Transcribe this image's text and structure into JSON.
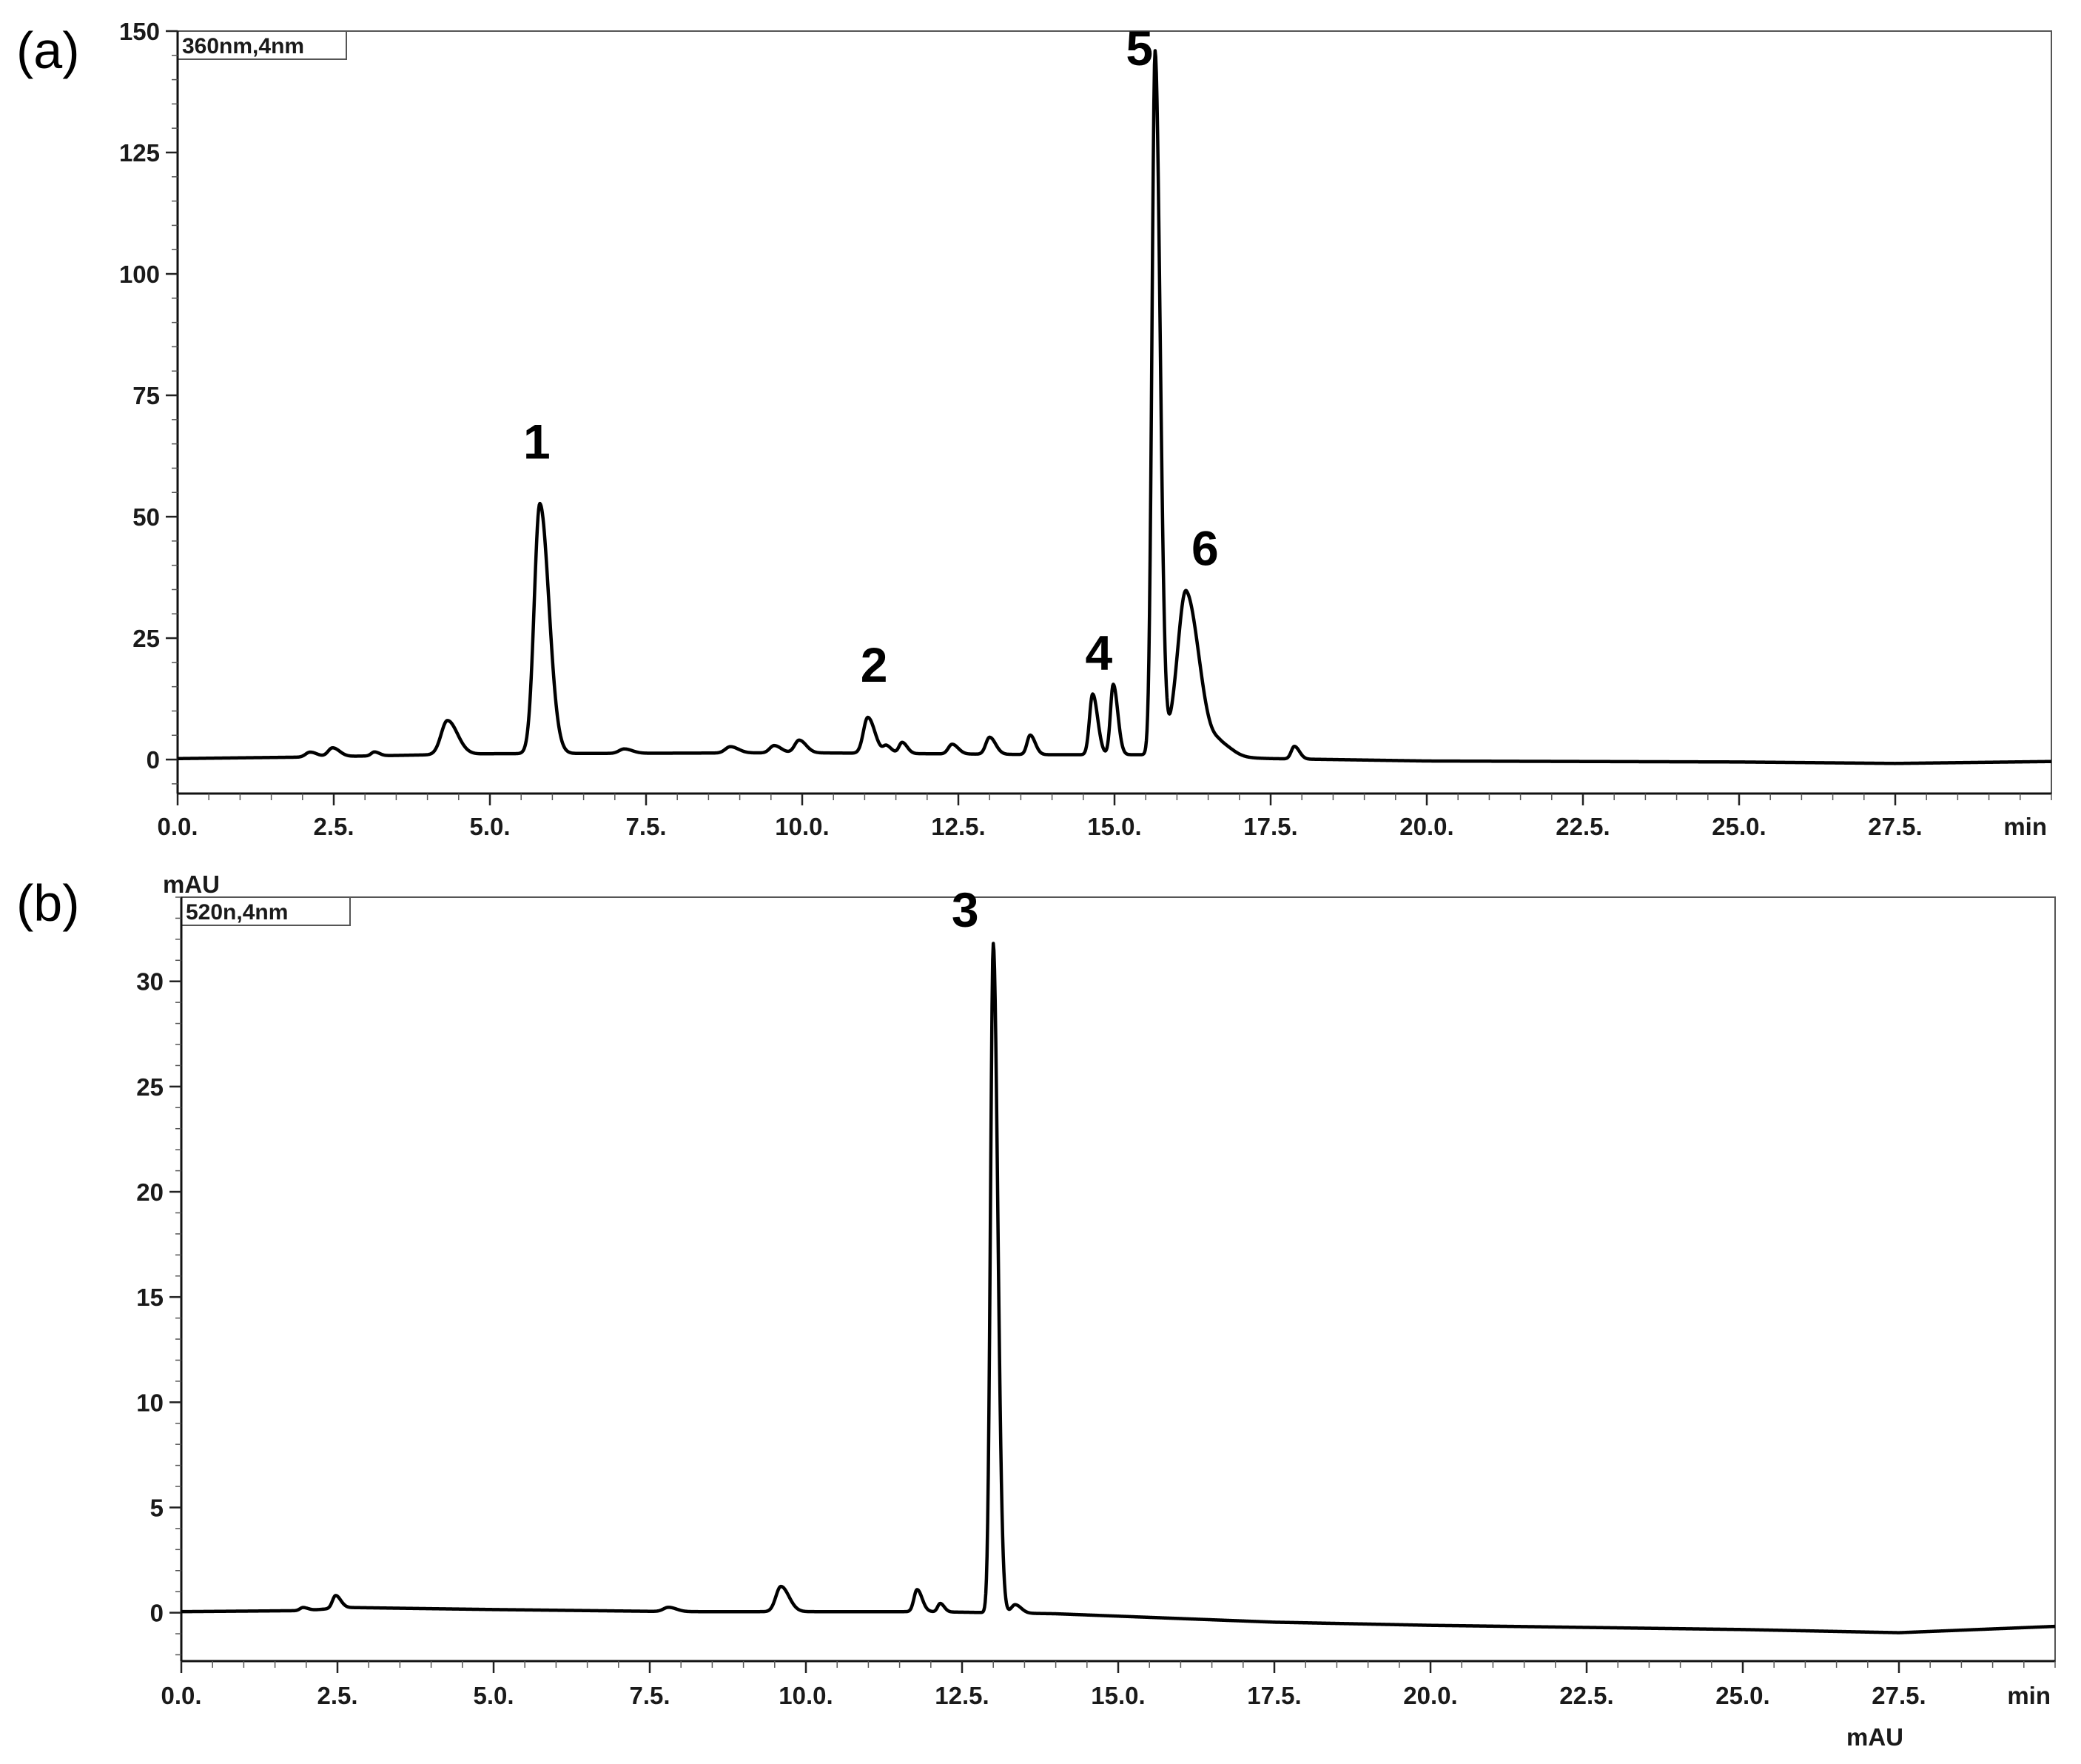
{
  "chart_data": [
    {
      "type": "line",
      "panel_label": "(a)",
      "channel_label": "360nm,4nm",
      "x_unit_label": "min",
      "y_unit_label": "",
      "xlim": [
        0,
        30
      ],
      "ylim": [
        -7,
        150
      ],
      "x_tick_labels": [
        "0.0.",
        "2.5.",
        "5.0.",
        "7.5.",
        "10.0.",
        "12.5.",
        "15.0.",
        "17.5.",
        "20.0.",
        "22.5.",
        "25.0.",
        "27.5."
      ],
      "x_tick_values": [
        0,
        2.5,
        5,
        7.5,
        10,
        12.5,
        15,
        17.5,
        20,
        22.5,
        25,
        27.5
      ],
      "y_tick_labels": [
        "150",
        "125",
        "100",
        "75",
        "50",
        "25",
        "0"
      ],
      "y_tick_values": [
        150,
        125,
        100,
        75,
        50,
        25,
        0
      ],
      "grid": false,
      "baseline": [
        [
          0,
          0.2
        ],
        [
          2,
          0.5
        ],
        [
          5,
          1.2
        ],
        [
          10,
          1.4
        ],
        [
          14,
          1.0
        ],
        [
          15.5,
          1.0
        ],
        [
          17.5,
          0.2
        ],
        [
          20,
          -0.3
        ],
        [
          25,
          -0.5
        ],
        [
          27.5,
          -0.8
        ],
        [
          30,
          -0.4
        ]
      ],
      "peaks": [
        {
          "rt": 2.12,
          "height": 1.0,
          "width": 0.07
        },
        {
          "rt": 2.48,
          "height": 1.8,
          "width": 0.07
        },
        {
          "rt": 3.15,
          "height": 0.8,
          "width": 0.05
        },
        {
          "rt": 4.32,
          "height": 7.0,
          "width": 0.1
        },
        {
          "rt": 5.8,
          "height": 51.5,
          "width": 0.09
        },
        {
          "rt": 7.15,
          "height": 0.9,
          "width": 0.08
        },
        {
          "rt": 8.85,
          "height": 1.3,
          "width": 0.08
        },
        {
          "rt": 9.55,
          "height": 1.5,
          "width": 0.07
        },
        {
          "rt": 9.95,
          "height": 2.6,
          "width": 0.07
        },
        {
          "rt": 11.05,
          "height": 7.4,
          "width": 0.07
        },
        {
          "rt": 11.35,
          "height": 1.5,
          "width": 0.05
        },
        {
          "rt": 11.6,
          "height": 2.3,
          "width": 0.05
        },
        {
          "rt": 12.4,
          "height": 2.0,
          "width": 0.06
        },
        {
          "rt": 13.0,
          "height": 3.5,
          "width": 0.06
        },
        {
          "rt": 13.65,
          "height": 4.0,
          "width": 0.05
        },
        {
          "rt": 14.65,
          "height": 12.5,
          "width": 0.05
        },
        {
          "rt": 14.98,
          "height": 14.5,
          "width": 0.045
        },
        {
          "rt": 15.65,
          "height": 145.0,
          "width": 0.05
        },
        {
          "rt": 15.95,
          "height": 3.5,
          "width": 0.08
        },
        {
          "rt": 16.15,
          "height": 33.0,
          "width": 0.13
        },
        {
          "rt": 16.7,
          "height": 2.5,
          "width": 0.12
        },
        {
          "rt": 17.88,
          "height": 2.6,
          "width": 0.05
        }
      ],
      "annotations": [
        {
          "text": "1",
          "x": 5.75,
          "y": 62
        },
        {
          "text": "2",
          "x": 11.15,
          "y": 16
        },
        {
          "text": "4",
          "x": 14.75,
          "y": 18.5
        },
        {
          "text": "5",
          "x": 15.4,
          "y": 143
        },
        {
          "text": "6",
          "x": 16.45,
          "y": 40
        }
      ]
    },
    {
      "type": "line",
      "panel_label": "(b)",
      "channel_label": "520n,4nm",
      "x_unit_label": "min",
      "y_unit_label": "mAU",
      "xlim": [
        0,
        30
      ],
      "ylim": [
        -2.3,
        34
      ],
      "x_tick_labels": [
        "0.0.",
        "2.5.",
        "5.0.",
        "7.5.",
        "10.0.",
        "12.5.",
        "15.0.",
        "17.5.",
        "20.0.",
        "22.5.",
        "25.0.",
        "27.5."
      ],
      "x_tick_values": [
        0,
        2.5,
        5,
        7.5,
        10,
        12.5,
        15,
        17.5,
        20,
        22.5,
        25,
        27.5
      ],
      "y_tick_labels": [
        "30",
        "25",
        "20",
        "15",
        "10",
        "5",
        "0"
      ],
      "y_tick_values": [
        30,
        25,
        20,
        15,
        10,
        5,
        0
      ],
      "grid": false,
      "baseline": [
        [
          0,
          0.05
        ],
        [
          2,
          0.1
        ],
        [
          2.6,
          0.25
        ],
        [
          5,
          0.15
        ],
        [
          8,
          0.05
        ],
        [
          12,
          0.05
        ],
        [
          14,
          -0.05
        ],
        [
          17.5,
          -0.45
        ],
        [
          20,
          -0.6
        ],
        [
          25,
          -0.8
        ],
        [
          27.5,
          -0.95
        ],
        [
          30,
          -0.65
        ]
      ],
      "peaks": [
        {
          "rt": 1.95,
          "height": 0.15,
          "width": 0.05
        },
        {
          "rt": 2.47,
          "height": 0.6,
          "width": 0.05
        },
        {
          "rt": 7.8,
          "height": 0.2,
          "width": 0.08
        },
        {
          "rt": 9.6,
          "height": 1.2,
          "width": 0.08
        },
        {
          "rt": 11.78,
          "height": 1.05,
          "width": 0.05
        },
        {
          "rt": 12.15,
          "height": 0.4,
          "width": 0.04
        },
        {
          "rt": 13.0,
          "height": 31.8,
          "width": 0.045
        },
        {
          "rt": 13.35,
          "height": 0.4,
          "width": 0.06
        }
      ],
      "annotations": [
        {
          "text": "3",
          "x": 12.55,
          "y": 32.6
        }
      ]
    }
  ],
  "footer_unit_label": "mAU"
}
